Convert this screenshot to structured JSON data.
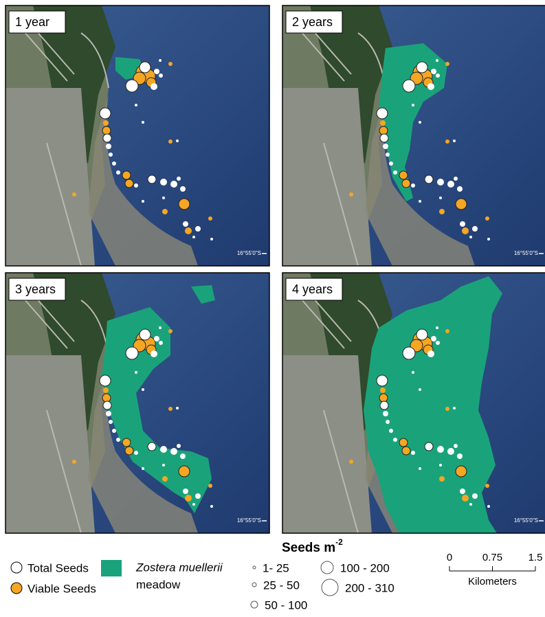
{
  "panels": [
    {
      "label": "1 year",
      "coordinate": "16°55'0\"S"
    },
    {
      "label": "2 years",
      "coordinate": "16°55'0\"S"
    },
    {
      "label": "3 years",
      "coordinate": "16°55'0\"S"
    },
    {
      "label": "4 years",
      "coordinate": "16°55'0\"S"
    }
  ],
  "legend": {
    "total": "Total Seeds",
    "viable": "Viable Seeds",
    "meadow_line1": "Zostera muellerii",
    "meadow_line2": "meadow",
    "size_title": "Seeds m",
    "size_title_exponent": "-2",
    "size_classes": [
      "1- 25",
      "25 - 50",
      "50 - 100",
      "100 - 200",
      "200 - 310"
    ]
  },
  "scale_bar": {
    "ticks": [
      0,
      0.75,
      1.5
    ],
    "unit": "Kilometers"
  }
}
